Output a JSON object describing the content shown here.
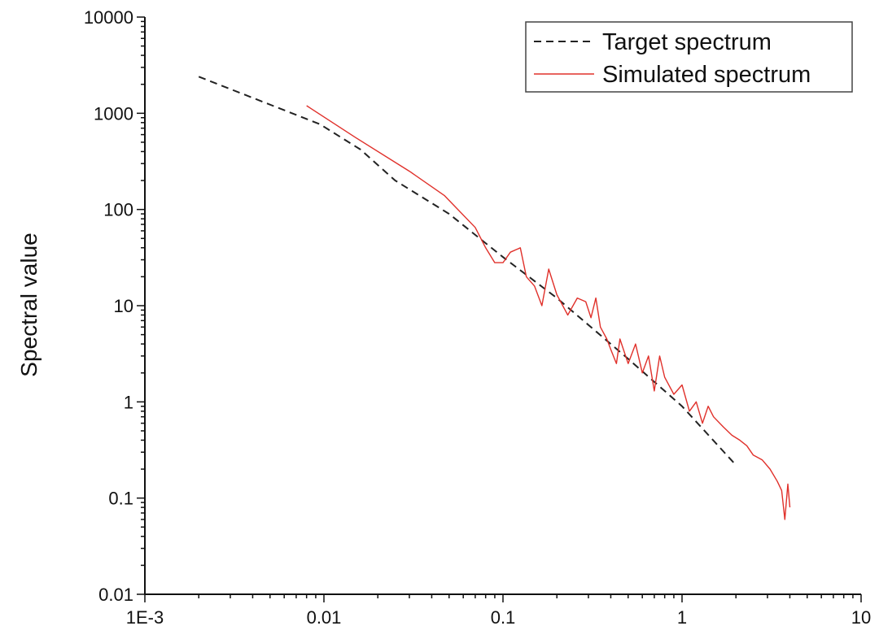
{
  "chart_data": {
    "type": "line",
    "title": "",
    "xlabel": "",
    "ylabel": "Spectral value",
    "x_scale": "log",
    "y_scale": "log",
    "xlim": [
      0.001,
      10
    ],
    "ylim": [
      0.01,
      10000
    ],
    "x_ticks": [
      0.001,
      0.01,
      0.1,
      1,
      10
    ],
    "x_tick_labels": [
      "1E-3",
      "0.01",
      "0.1",
      "1",
      "10"
    ],
    "y_ticks": [
      0.01,
      0.1,
      1,
      10,
      100,
      1000,
      10000
    ],
    "y_tick_labels": [
      "0.01",
      "0.1",
      "1",
      "10",
      "100",
      "1000",
      "10000"
    ],
    "grid": false,
    "legend_position": "top-right",
    "series": [
      {
        "name": "Target spectrum",
        "style": "dashed",
        "color": "#222222",
        "x": [
          0.002,
          0.0095,
          0.016,
          0.025,
          0.05,
          0.1,
          0.2,
          0.5,
          1,
          2
        ],
        "y": [
          2400,
          770,
          420,
          200,
          90,
          32,
          12,
          2.8,
          0.9,
          0.22
        ]
      },
      {
        "name": "Simulated spectrum",
        "style": "solid",
        "color": "#e0302a",
        "x": [
          0.008,
          0.015,
          0.03,
          0.047,
          0.07,
          0.08,
          0.09,
          0.1,
          0.11,
          0.125,
          0.135,
          0.15,
          0.165,
          0.18,
          0.2,
          0.23,
          0.26,
          0.29,
          0.31,
          0.33,
          0.35,
          0.38,
          0.4,
          0.43,
          0.45,
          0.5,
          0.55,
          0.6,
          0.65,
          0.7,
          0.75,
          0.8,
          0.9,
          1.0,
          1.1,
          1.2,
          1.3,
          1.4,
          1.5,
          1.7,
          1.9,
          2.1,
          2.3,
          2.5,
          2.8,
          3.1,
          3.4,
          3.6,
          3.75,
          3.9,
          4.0
        ],
        "y": [
          1200,
          560,
          250,
          140,
          65,
          40,
          28,
          28,
          36,
          40,
          20,
          16,
          10,
          24,
          13,
          8,
          12,
          11,
          7.5,
          12,
          6,
          4.5,
          3.5,
          2.5,
          4.5,
          2.5,
          4,
          2,
          3,
          1.3,
          3,
          1.8,
          1.2,
          1.5,
          0.8,
          1,
          0.6,
          0.9,
          0.7,
          0.55,
          0.45,
          0.4,
          0.35,
          0.28,
          0.25,
          0.2,
          0.15,
          0.12,
          0.06,
          0.14,
          0.08
        ]
      }
    ]
  }
}
